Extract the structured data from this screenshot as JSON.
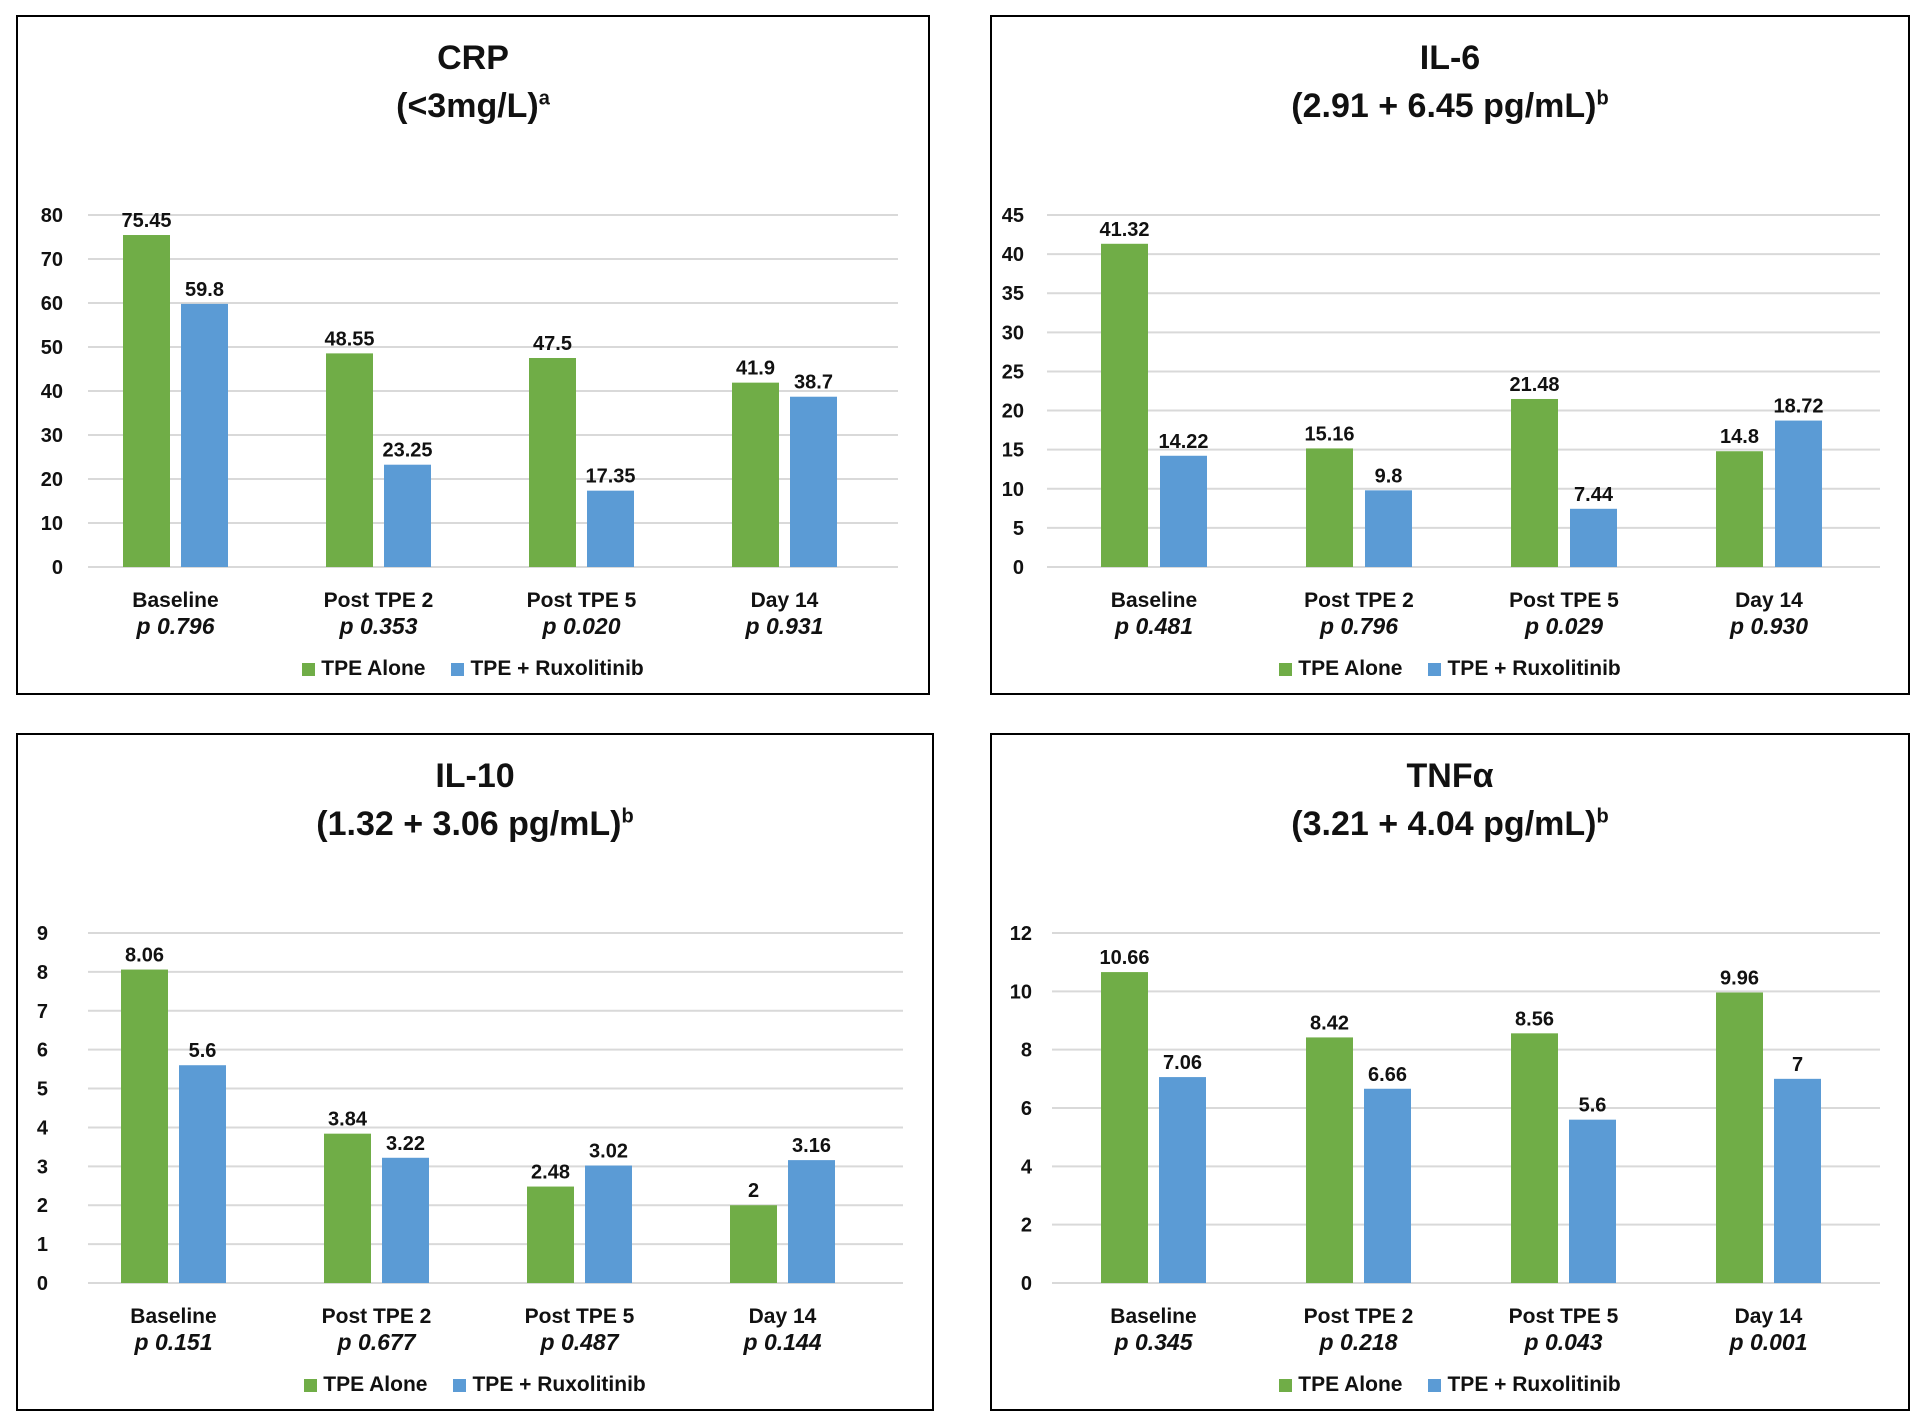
{
  "colors": {
    "tpe_alone": "#70AD47",
    "tpe_rux": "#5B9BD5",
    "p_significant": "#E31A1C",
    "p_normal": "#111111",
    "grid": "#D9D9D9"
  },
  "chart_data": [
    {
      "type": "bar",
      "title": "CRP",
      "subtitle_main": "(<3mg/L)",
      "subtitle_sup": "a",
      "categories": [
        "Baseline",
        "Post TPE 2",
        "Post TPE 5",
        "Day 14"
      ],
      "p_values": [
        "p 0.796",
        "p 0.353",
        "p 0.020",
        "p 0.931"
      ],
      "p_significant": [
        false,
        false,
        true,
        false
      ],
      "ylim": [
        0,
        80
      ],
      "yticks": [
        0,
        10,
        20,
        30,
        40,
        50,
        60,
        70,
        80
      ],
      "series": [
        {
          "name": "TPE Alone",
          "values": [
            75.45,
            48.55,
            47.5,
            41.9
          ]
        },
        {
          "name": "TPE + Ruxolitinib",
          "values": [
            59.8,
            23.25,
            17.35,
            38.7
          ]
        }
      ],
      "data_labels": [
        [
          "75.45",
          "48.55",
          "47.5",
          "41.9"
        ],
        [
          "59.8",
          "23.25",
          "17.35",
          "38.7"
        ]
      ],
      "grid": true,
      "legend": "bottom"
    },
    {
      "type": "bar",
      "title": "IL-6",
      "subtitle_main": "(2.91 + 6.45 pg/mL)",
      "subtitle_sup": "b",
      "categories": [
        "Baseline",
        "Post TPE 2",
        "Post TPE 5",
        "Day 14"
      ],
      "p_values": [
        "p 0.481",
        "p 0.796",
        "p 0.029",
        "p 0.930"
      ],
      "p_significant": [
        false,
        false,
        true,
        false
      ],
      "ylim": [
        0,
        45
      ],
      "yticks": [
        0,
        5,
        10,
        15,
        20,
        25,
        30,
        35,
        40,
        45
      ],
      "series": [
        {
          "name": "TPE Alone",
          "values": [
            41.32,
            15.16,
            21.48,
            14.8
          ]
        },
        {
          "name": "TPE + Ruxolitinib",
          "values": [
            14.22,
            9.8,
            7.44,
            18.72
          ]
        }
      ],
      "data_labels": [
        [
          "41.32",
          "15.16",
          "21.48",
          "14.8"
        ],
        [
          "14.22",
          "9.8",
          "7.44",
          "18.72"
        ]
      ],
      "grid": true,
      "legend": "bottom"
    },
    {
      "type": "bar",
      "title": "IL-10",
      "subtitle_main": "(1.32 + 3.06 pg/mL)",
      "subtitle_sup": "b",
      "categories": [
        "Baseline",
        "Post TPE 2",
        "Post TPE 5",
        "Day 14"
      ],
      "p_values": [
        "p 0.151",
        "p 0.677",
        "p 0.487",
        "p 0.144"
      ],
      "p_significant": [
        false,
        false,
        false,
        false
      ],
      "ylim": [
        0,
        9
      ],
      "yticks": [
        0,
        1,
        2,
        3,
        4,
        5,
        6,
        7,
        8,
        9
      ],
      "series": [
        {
          "name": "TPE Alone",
          "values": [
            8.06,
            3.84,
            2.48,
            2
          ]
        },
        {
          "name": "TPE + Ruxolitinib",
          "values": [
            5.6,
            3.22,
            3.02,
            3.16
          ]
        }
      ],
      "data_labels": [
        [
          "8.06",
          "3.84",
          "2.48",
          "2"
        ],
        [
          "5.6",
          "3.22",
          "3.02",
          "3.16"
        ]
      ],
      "grid": true,
      "legend": "bottom"
    },
    {
      "type": "bar",
      "title": "TNFα",
      "subtitle_main": "(3.21 + 4.04 pg/mL)",
      "subtitle_sup": "b",
      "categories": [
        "Baseline",
        "Post TPE 2",
        "Post TPE 5",
        "Day 14"
      ],
      "p_values": [
        "p 0.345",
        "p 0.218",
        "p 0.043",
        "p 0.001"
      ],
      "p_significant": [
        false,
        false,
        true,
        true
      ],
      "ylim": [
        0,
        12
      ],
      "yticks": [
        0,
        2,
        4,
        6,
        8,
        10,
        12
      ],
      "series": [
        {
          "name": "TPE Alone",
          "values": [
            10.66,
            8.42,
            8.56,
            9.96
          ]
        },
        {
          "name": "TPE + Ruxolitinib",
          "values": [
            7.06,
            6.66,
            5.6,
            7
          ]
        }
      ],
      "data_labels": [
        [
          "10.66",
          "8.42",
          "8.56",
          "9.96"
        ],
        [
          "7.06",
          "6.66",
          "5.6",
          "7"
        ]
      ],
      "grid": true,
      "legend": "bottom"
    }
  ]
}
